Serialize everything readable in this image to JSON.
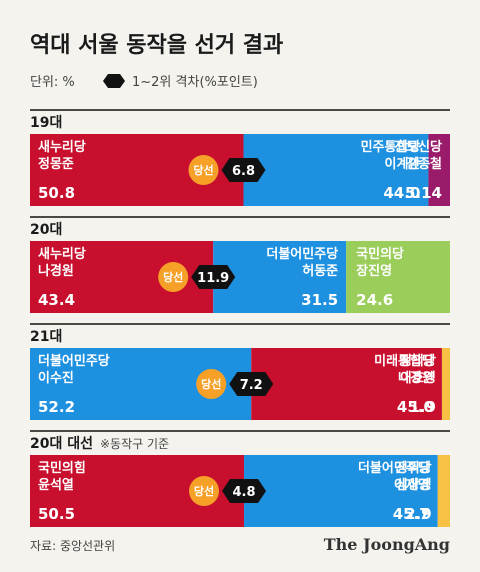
{
  "title": "역대 서울 동작을 선거 결과",
  "unit_label": "단위: %",
  "gap_legend": "1~2위 격차(%포인트)",
  "winner_badge": "당선",
  "source": "자료: 중앙선관위",
  "brand": "The JoongAng",
  "colors": {
    "background": "#f4f3ee",
    "saenuri": "#c8102e",
    "minju": "#1e90e0",
    "jinbo": "#9b1b6b",
    "kukmin": "#9acd5a",
    "jeongui": "#f7c244",
    "badge": "#f6a028",
    "gap_marker": "#111111"
  },
  "chart_data": {
    "type": "bar",
    "stacked": true,
    "orientation": "horizontal",
    "unit": "%",
    "elections": [
      {
        "label": "19대",
        "note": "",
        "gap": "6.8",
        "candidates": [
          {
            "name_line1": "새누리당",
            "name_line2": "정몽준",
            "value": 50.8,
            "value_label": "50.8",
            "color": "#c8102e",
            "winner": true
          },
          {
            "name_line1": "민주통합당",
            "name_line2": "이계안",
            "value": 44.0,
            "value_label": "44.0",
            "color": "#1e90e0",
            "winner": false
          },
          {
            "name_line1": "진보신당",
            "name_line2": "김종철",
            "value": 5.14,
            "value_label": "5.14",
            "color": "#9b1b6b",
            "winner": false
          }
        ]
      },
      {
        "label": "20대",
        "note": "",
        "gap": "11.9",
        "candidates": [
          {
            "name_line1": "새누리당",
            "name_line2": "나경원",
            "value": 43.4,
            "value_label": "43.4",
            "color": "#c8102e",
            "winner": true
          },
          {
            "name_line1": "더불어민주당",
            "name_line2": "허동준",
            "value": 31.5,
            "value_label": "31.5",
            "color": "#1e90e0",
            "winner": false
          },
          {
            "name_line1": "국민의당",
            "name_line2": "장진영",
            "value": 24.6,
            "value_label": "24.6",
            "color": "#9acd5a",
            "winner": false
          }
        ]
      },
      {
        "label": "21대",
        "note": "",
        "gap": "7.2",
        "candidates": [
          {
            "name_line1": "더불어민주당",
            "name_line2": "이수진",
            "value": 52.2,
            "value_label": "52.2",
            "color": "#1e90e0",
            "winner": true
          },
          {
            "name_line1": "미래통합당",
            "name_line2": "나경원",
            "value": 45.0,
            "value_label": "45.0",
            "color": "#c8102e",
            "winner": false
          },
          {
            "name_line1": "정의당",
            "name_line2": "이호영",
            "value": 1.9,
            "value_label": "1.9",
            "color": "#f7c244",
            "winner": false
          }
        ]
      },
      {
        "label": "20대 대선",
        "note": "※동작구 기준",
        "gap": "4.8",
        "candidates": [
          {
            "name_line1": "국민의힘",
            "name_line2": "윤석열",
            "value": 50.5,
            "value_label": "50.5",
            "color": "#c8102e",
            "winner": true
          },
          {
            "name_line1": "더불어민주당",
            "name_line2": "이재명",
            "value": 45.7,
            "value_label": "45.7",
            "color": "#1e90e0",
            "winner": false
          },
          {
            "name_line1": "정의당",
            "name_line2": "심상정",
            "value": 2.9,
            "value_label": "2.9",
            "color": "#f7c244",
            "winner": false
          }
        ]
      }
    ]
  }
}
